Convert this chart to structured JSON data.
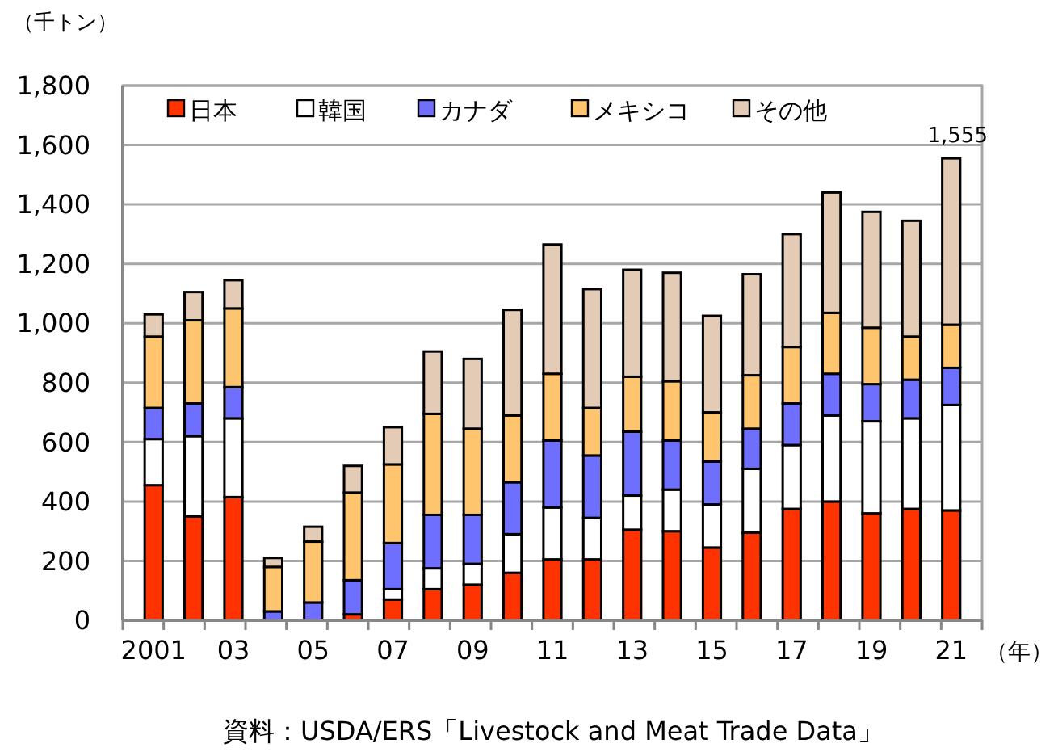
{
  "chart_data": {
    "type": "bar",
    "stacked": true,
    "ylabel": "（千トン）",
    "xlabel": "（年）",
    "annotations": [
      "資料：USDA/ERS「Livestock and Meat Trade Data」"
    ],
    "categories": [
      "2001",
      null,
      "03",
      null,
      "05",
      null,
      "07",
      null,
      "09",
      null,
      "11",
      null,
      "13",
      null,
      "15",
      null,
      "17",
      null,
      "19",
      null,
      "21"
    ],
    "series": [
      {
        "name": "日本",
        "color": "#ff3300",
        "values": [
          455,
          350,
          415,
          0,
          0,
          20,
          70,
          105,
          120,
          160,
          205,
          205,
          305,
          300,
          245,
          295,
          375,
          400,
          360,
          375,
          370
        ]
      },
      {
        "name": "韓国",
        "color": "#ffffff",
        "values": [
          155,
          270,
          265,
          0,
          0,
          0,
          35,
          70,
          70,
          130,
          175,
          140,
          115,
          140,
          145,
          215,
          215,
          290,
          310,
          305,
          355
        ]
      },
      {
        "name": "カナダ",
        "color": "#6f6fff",
        "values": [
          105,
          110,
          105,
          30,
          60,
          115,
          155,
          180,
          165,
          175,
          225,
          210,
          215,
          165,
          145,
          135,
          140,
          140,
          125,
          130,
          125
        ]
      },
      {
        "name": "メキシコ",
        "color": "#ffc56e",
        "values": [
          240,
          280,
          265,
          150,
          205,
          295,
          265,
          340,
          290,
          225,
          225,
          160,
          185,
          200,
          165,
          180,
          190,
          205,
          190,
          145,
          145
        ]
      },
      {
        "name": "その他",
        "color": "#e3cbb5",
        "values": [
          75,
          95,
          95,
          30,
          50,
          90,
          125,
          210,
          235,
          355,
          435,
          400,
          360,
          365,
          325,
          340,
          380,
          405,
          390,
          390,
          560
        ]
      }
    ],
    "totals": [
      null,
      null,
      null,
      null,
      null,
      null,
      null,
      null,
      null,
      null,
      null,
      null,
      null,
      null,
      null,
      null,
      null,
      null,
      null,
      null,
      "1,555"
    ],
    "ylim": [
      0,
      1800
    ],
    "yticks": [
      {
        "value": 0,
        "label": "0"
      },
      {
        "value": 200,
        "label": "200"
      },
      {
        "value": 400,
        "label": "400"
      },
      {
        "value": 600,
        "label": "600"
      },
      {
        "value": 800,
        "label": "800"
      },
      {
        "value": 1000,
        "label": "1,000"
      },
      {
        "value": 1200,
        "label": "1,200"
      },
      {
        "value": 1400,
        "label": "1,400"
      },
      {
        "value": 1600,
        "label": "1,600"
      },
      {
        "value": 1800,
        "label": "1,800"
      }
    ],
    "grid": "y",
    "legend": "top"
  }
}
